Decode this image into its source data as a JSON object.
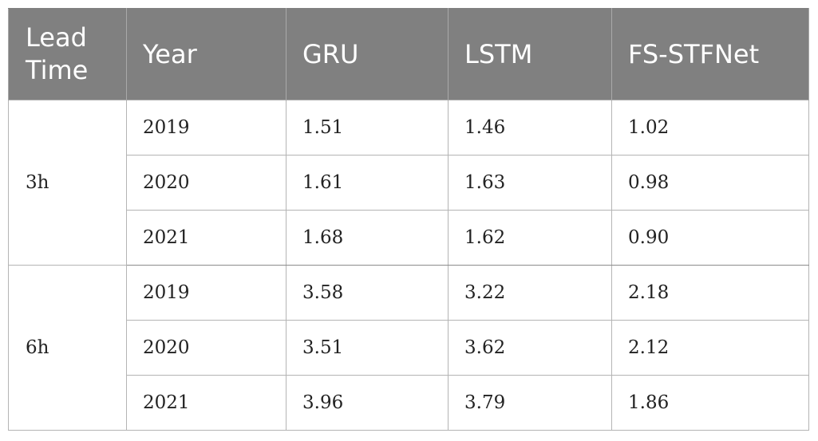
{
  "table": {
    "headers": [
      "Lead\nTime",
      "Year",
      "GRU",
      "LSTM",
      "FS-STFNet"
    ],
    "groups": [
      {
        "lead_time": "3h",
        "rows": [
          {
            "year": "2019",
            "gru": "1.51",
            "lstm": "1.46",
            "fsstfnet": "1.02"
          },
          {
            "year": "2020",
            "gru": "1.61",
            "lstm": "1.63",
            "fsstfnet": "0.98"
          },
          {
            "year": "2021",
            "gru": "1.68",
            "lstm": "1.62",
            "fsstfnet": "0.90"
          }
        ]
      },
      {
        "lead_time": "6h",
        "rows": [
          {
            "year": "2019",
            "gru": "3.58",
            "lstm": "3.22",
            "fsstfnet": "2.18"
          },
          {
            "year": "2020",
            "gru": "3.51",
            "lstm": "3.62",
            "fsstfnet": "2.12"
          },
          {
            "year": "2021",
            "gru": "3.96",
            "lstm": "3.79",
            "fsstfnet": "1.86"
          }
        ]
      }
    ]
  }
}
